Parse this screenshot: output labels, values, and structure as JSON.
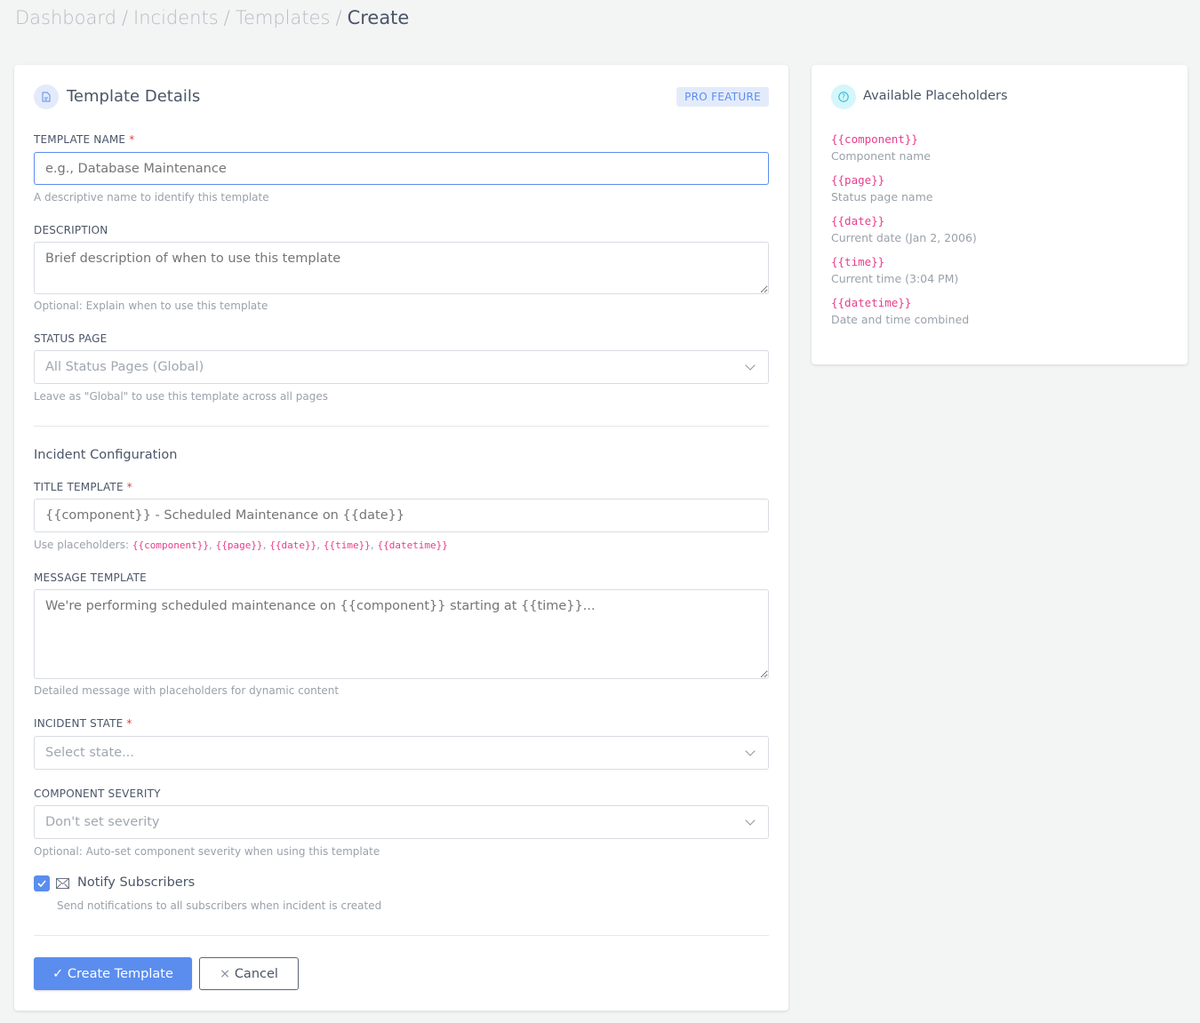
{
  "breadcrumb": [
    "Dashboard",
    "Incidents",
    "Templates",
    "Create"
  ],
  "form": {
    "title": "Template Details",
    "badge": "PRO FEATURE",
    "template_name": {
      "label": "TEMPLATE NAME",
      "placeholder": "e.g., Database Maintenance",
      "help": "A descriptive name to identify this template"
    },
    "description": {
      "label": "DESCRIPTION",
      "placeholder": "Brief description of when to use this template",
      "help": "Optional: Explain when to use this template"
    },
    "status_page": {
      "label": "STATUS PAGE",
      "value": "All Status Pages (Global)",
      "help": "Leave as \"Global\" to use this template across all pages"
    },
    "section": "Incident Configuration",
    "title_template": {
      "label": "TITLE TEMPLATE",
      "placeholder": "{{component}} - Scheduled Maintenance on {{date}}",
      "help_prefix": "Use placeholders: ",
      "placeholders": [
        "{{component}}",
        "{{page}}",
        "{{date}}",
        "{{time}}",
        "{{datetime}}"
      ]
    },
    "message_template": {
      "label": "MESSAGE TEMPLATE",
      "placeholder": "We're performing scheduled maintenance on {{component}} starting at {{time}}...",
      "help": "Detailed message with placeholders for dynamic content"
    },
    "incident_state": {
      "label": "INCIDENT STATE",
      "value": "Select state..."
    },
    "severity": {
      "label": "COMPONENT SEVERITY",
      "value": "Don't set severity",
      "help": "Optional: Auto-set component severity when using this template"
    },
    "notify": {
      "label": "Notify Subscribers",
      "checked": true,
      "help": "Send notifications to all subscribers when incident is created"
    },
    "create": "Create Template",
    "cancel": "Cancel"
  },
  "placeholders": {
    "title": "Available Placeholders",
    "items": [
      {
        "code": "{{component}}",
        "desc": "Component name"
      },
      {
        "code": "{{page}}",
        "desc": "Status page name"
      },
      {
        "code": "{{date}}",
        "desc": "Current date (Jan 2, 2006)"
      },
      {
        "code": "{{time}}",
        "desc": "Current time (3:04 PM)"
      },
      {
        "code": "{{datetime}}",
        "desc": "Date and time combined"
      }
    ]
  },
  "colors": {
    "primary": "#5b8def",
    "code": "#e83e8c",
    "required": "#e53e3e"
  }
}
